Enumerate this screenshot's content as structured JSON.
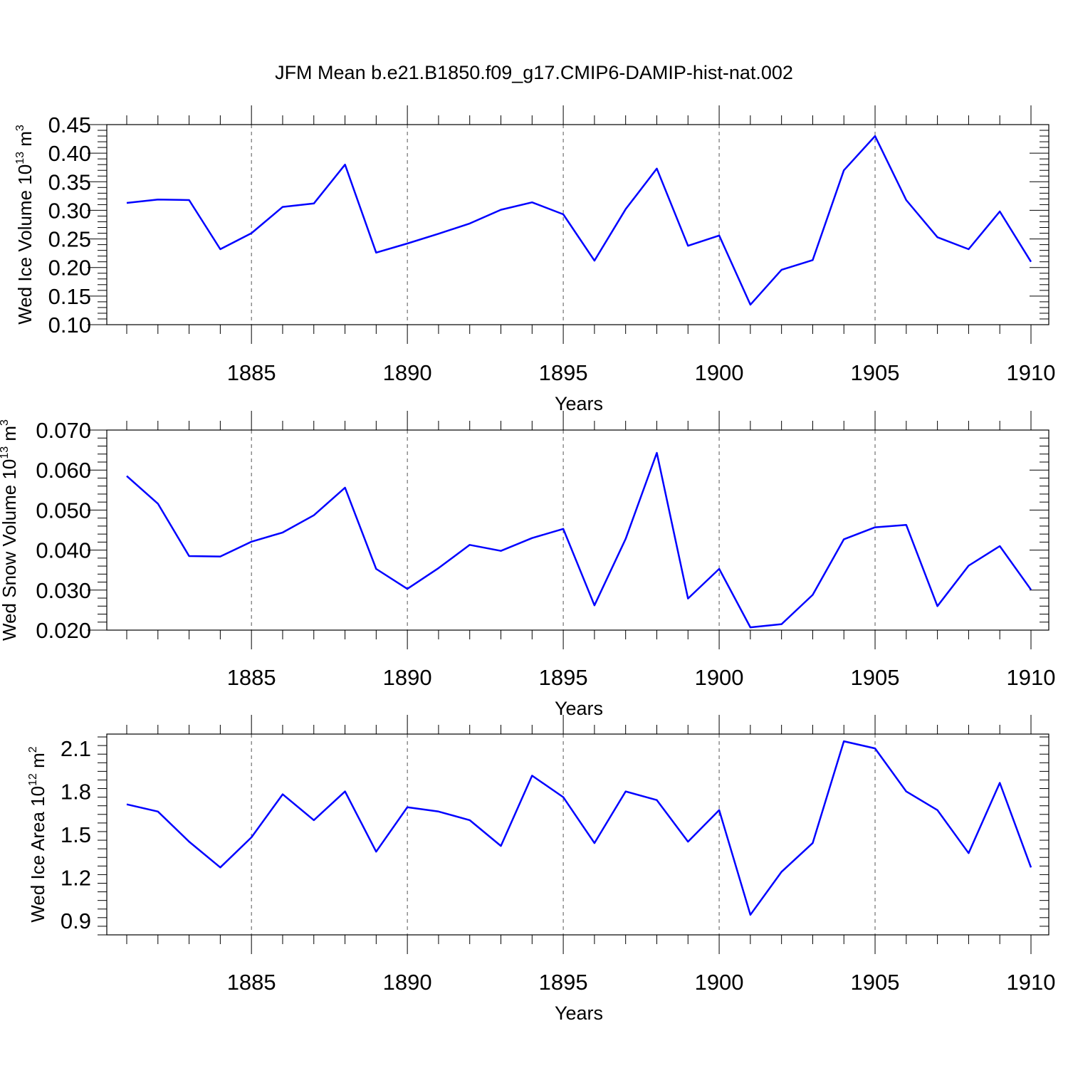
{
  "title": "JFM Mean b.e21.B1850.f09_g17.CMIP6-DAMIP-hist-nat.002",
  "chart_data": [
    {
      "type": "line",
      "ylabel_main": "Wed Ice Volume 10",
      "ylabel_exp": "13",
      "ylabel_unit": "m",
      "ylabel_unit_exp": "3",
      "xlabel": "Years",
      "xlim": [
        1881,
        1910
      ],
      "ylim": [
        0.1,
        0.45
      ],
      "yticks": [
        0.1,
        0.15,
        0.2,
        0.25,
        0.3,
        0.35,
        0.4,
        0.45
      ],
      "ytick_labels": [
        "0.10",
        "0.15",
        "0.20",
        "0.25",
        "0.30",
        "0.35",
        "0.40",
        "0.45"
      ],
      "xticks": [
        1885,
        1890,
        1895,
        1900,
        1905,
        1910
      ],
      "xtick_labels": [
        "1885",
        "1890",
        "1895",
        "1900",
        "1905",
        "1910"
      ],
      "color": "#0000ff",
      "x": [
        1881,
        1882,
        1883,
        1884,
        1885,
        1886,
        1887,
        1888,
        1889,
        1890,
        1891,
        1892,
        1893,
        1894,
        1895,
        1896,
        1897,
        1898,
        1899,
        1900,
        1901,
        1902,
        1903,
        1904,
        1905,
        1906,
        1907,
        1908,
        1909,
        1910
      ],
      "values": [
        0.313,
        0.319,
        0.318,
        0.232,
        0.26,
        0.306,
        0.312,
        0.38,
        0.226,
        0.242,
        0.259,
        0.277,
        0.301,
        0.314,
        0.293,
        0.212,
        0.302,
        0.373,
        0.238,
        0.256,
        0.135,
        0.196,
        0.213,
        0.37,
        0.43,
        0.318,
        0.253,
        0.232,
        0.298,
        0.21
      ]
    },
    {
      "type": "line",
      "ylabel_main": "Wed Snow Volume 10",
      "ylabel_exp": "13",
      "ylabel_unit": "m",
      "ylabel_unit_exp": "3",
      "xlabel": "Years",
      "xlim": [
        1881,
        1910
      ],
      "ylim": [
        0.02,
        0.07
      ],
      "yticks": [
        0.02,
        0.03,
        0.04,
        0.05,
        0.06,
        0.07
      ],
      "ytick_labels": [
        "0.020",
        "0.030",
        "0.040",
        "0.050",
        "0.060",
        "0.070"
      ],
      "xticks": [
        1885,
        1890,
        1895,
        1900,
        1905,
        1910
      ],
      "xtick_labels": [
        "1885",
        "1890",
        "1895",
        "1900",
        "1905",
        "1910"
      ],
      "color": "#0000ff",
      "x": [
        1881,
        1882,
        1883,
        1884,
        1885,
        1886,
        1887,
        1888,
        1889,
        1890,
        1891,
        1892,
        1893,
        1894,
        1895,
        1896,
        1897,
        1898,
        1899,
        1900,
        1901,
        1902,
        1903,
        1904,
        1905,
        1906,
        1907,
        1908,
        1909,
        1910
      ],
      "values": [
        0.0585,
        0.0516,
        0.0385,
        0.0384,
        0.0421,
        0.0444,
        0.0487,
        0.0556,
        0.0353,
        0.0303,
        0.0355,
        0.0413,
        0.0398,
        0.043,
        0.0453,
        0.0262,
        0.0428,
        0.0643,
        0.0279,
        0.0353,
        0.0207,
        0.0215,
        0.0288,
        0.0427,
        0.0457,
        0.0463,
        0.026,
        0.0361,
        0.041,
        0.0301
      ]
    },
    {
      "type": "line",
      "ylabel_main": "Wed Ice Area 10",
      "ylabel_exp": "12",
      "ylabel_unit": "m",
      "ylabel_unit_exp": "2",
      "xlabel": "Years",
      "xlim": [
        1881,
        1910
      ],
      "ylim": [
        0.8,
        2.2
      ],
      "yticks": [
        0.9,
        1.2,
        1.5,
        1.8,
        2.1
      ],
      "ytick_labels": [
        "0.9",
        "1.2",
        "1.5",
        "1.8",
        "2.1"
      ],
      "xticks": [
        1885,
        1890,
        1895,
        1900,
        1905,
        1910
      ],
      "xtick_labels": [
        "1885",
        "1890",
        "1895",
        "1900",
        "1905",
        "1910"
      ],
      "color": "#0000ff",
      "x": [
        1881,
        1882,
        1883,
        1884,
        1885,
        1886,
        1887,
        1888,
        1889,
        1890,
        1891,
        1892,
        1893,
        1894,
        1895,
        1896,
        1897,
        1898,
        1899,
        1900,
        1901,
        1902,
        1903,
        1904,
        1905,
        1906,
        1907,
        1908,
        1909,
        1910
      ],
      "values": [
        1.71,
        1.66,
        1.45,
        1.27,
        1.48,
        1.78,
        1.6,
        1.8,
        1.38,
        1.69,
        1.66,
        1.6,
        1.42,
        1.91,
        1.76,
        1.44,
        1.8,
        1.74,
        1.45,
        1.67,
        0.94,
        1.24,
        1.44,
        2.15,
        2.1,
        1.8,
        1.67,
        1.37,
        1.86,
        1.27
      ]
    }
  ]
}
